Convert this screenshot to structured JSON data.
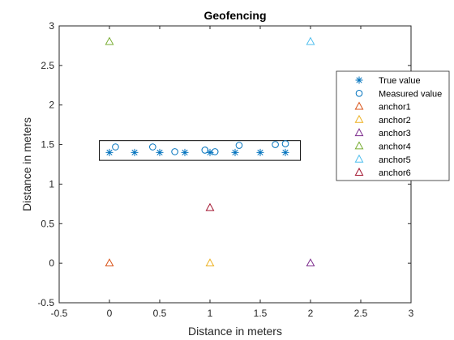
{
  "chart_data": {
    "type": "scatter",
    "title": "Geofencing",
    "xlabel": "Distance in meters",
    "ylabel": "Distance in meters",
    "xlim": [
      -0.5,
      3
    ],
    "ylim": [
      -0.5,
      3
    ],
    "xticks": [
      -0.5,
      0,
      0.5,
      1,
      1.5,
      2,
      2.5,
      3
    ],
    "yticks": [
      -0.5,
      0,
      0.5,
      1,
      1.5,
      2,
      2.5,
      3
    ],
    "xticklabels": [
      "-0.5",
      "0",
      "0.5",
      "1",
      "1.5",
      "2",
      "2.5",
      "3"
    ],
    "yticklabels": [
      "-0.5",
      "0",
      "0.5",
      "1",
      "1.5",
      "2",
      "2.5",
      "3"
    ],
    "grid": false,
    "legend_position": "right",
    "geofence": {
      "x": [
        -0.1,
        1.9
      ],
      "y": [
        1.3,
        1.55
      ],
      "color": "#000000"
    },
    "series": [
      {
        "name": "True value",
        "marker": "asterisk",
        "color": "#0072BD",
        "x": [
          0,
          0.25,
          0.5,
          0.75,
          1,
          1.25,
          1.5,
          1.75
        ],
        "y": [
          1.4,
          1.4,
          1.4,
          1.4,
          1.4,
          1.4,
          1.4,
          1.4
        ]
      },
      {
        "name": "Measured value",
        "marker": "circle",
        "color": "#0072BD",
        "x": [
          0.06,
          0.43,
          0.65,
          0.95,
          1.05,
          1.29,
          1.65,
          1.75
        ],
        "y": [
          1.47,
          1.47,
          1.41,
          1.43,
          1.41,
          1.49,
          1.5,
          1.51
        ]
      },
      {
        "name": "anchor1",
        "marker": "triangle",
        "color": "#D95319",
        "x": [
          0
        ],
        "y": [
          0
        ]
      },
      {
        "name": "anchor2",
        "marker": "triangle",
        "color": "#EDB120",
        "x": [
          1
        ],
        "y": [
          0
        ]
      },
      {
        "name": "anchor3",
        "marker": "triangle",
        "color": "#7E2F8E",
        "x": [
          2
        ],
        "y": [
          0
        ]
      },
      {
        "name": "anchor4",
        "marker": "triangle",
        "color": "#77AC30",
        "x": [
          0
        ],
        "y": [
          2.8
        ]
      },
      {
        "name": "anchor5",
        "marker": "triangle",
        "color": "#4DBEEE",
        "x": [
          2
        ],
        "y": [
          2.8
        ]
      },
      {
        "name": "anchor6",
        "marker": "triangle",
        "color": "#A2142F",
        "x": [
          1
        ],
        "y": [
          0.7
        ]
      }
    ]
  }
}
